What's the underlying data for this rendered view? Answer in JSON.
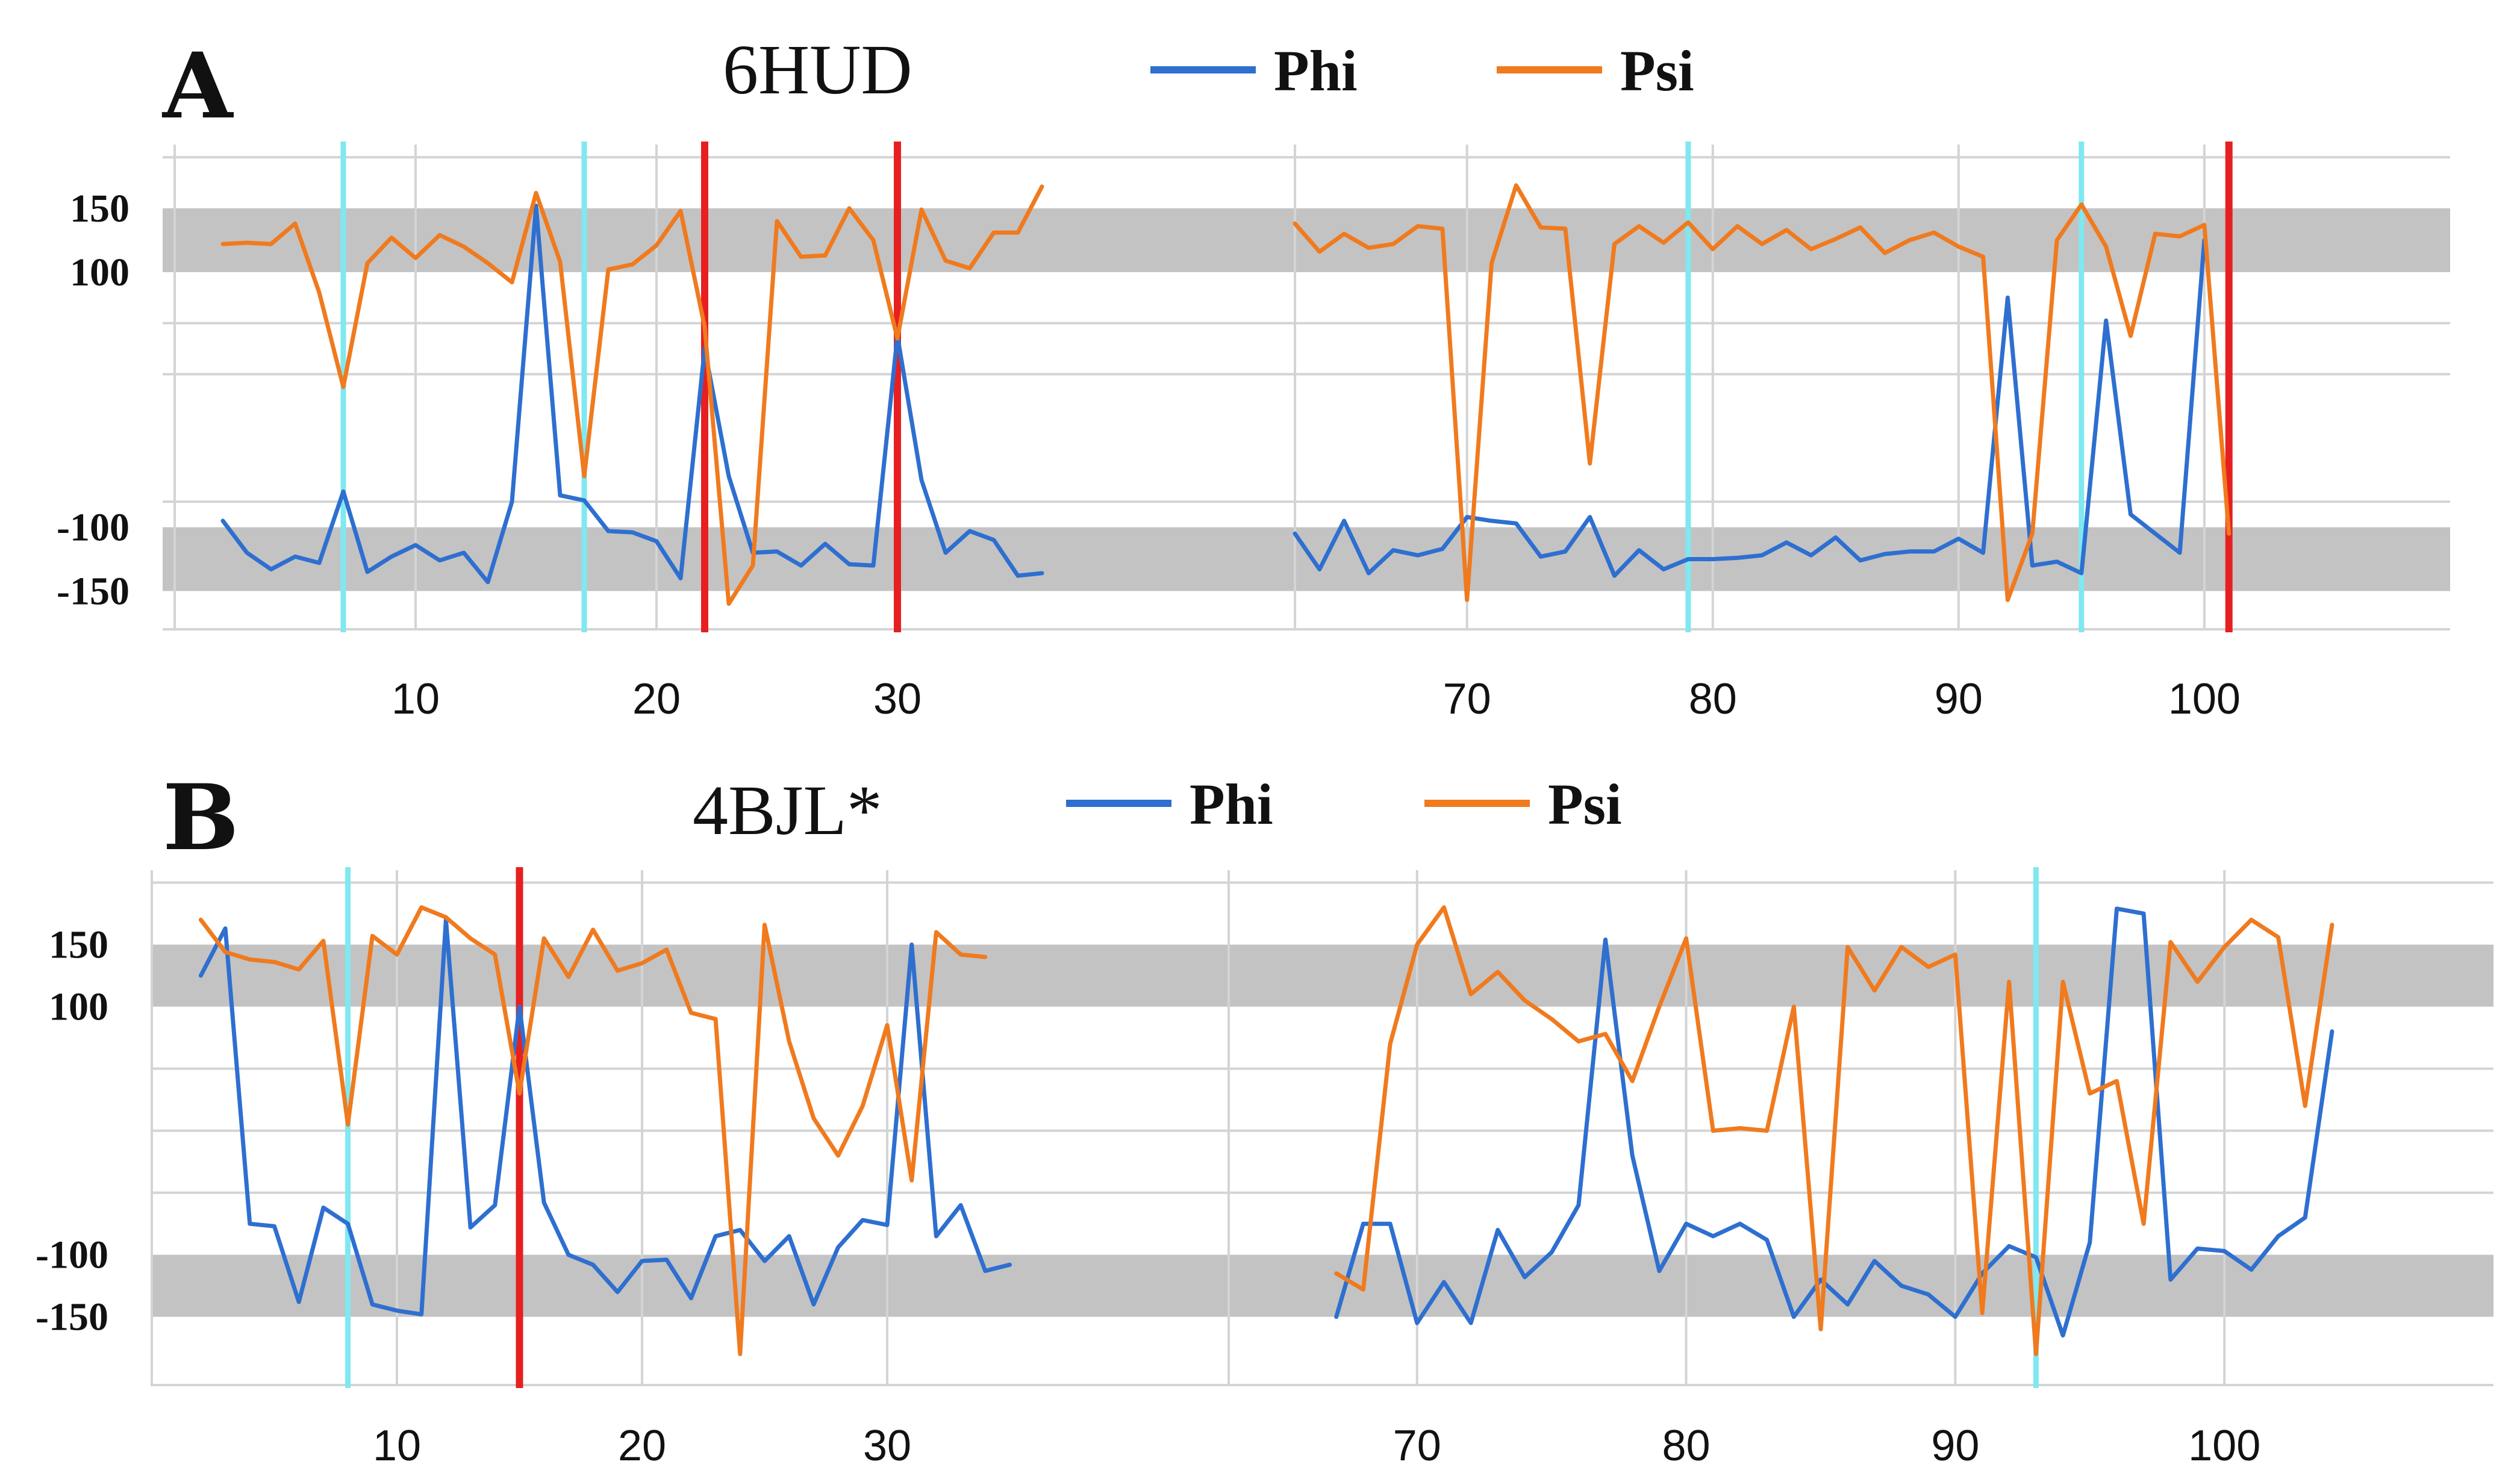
{
  "colors": {
    "phi": "#2e6fd0",
    "psi": "#f07a1e",
    "band": "#c3c3c3",
    "grid": "#d4d4d4",
    "cyan_marker": "#7fe8f0",
    "red_marker": "#e62020"
  },
  "chart_data": [
    {
      "type": "line",
      "panel": "A",
      "title": "6HUD",
      "legend": [
        "Phi",
        "Psi"
      ],
      "ylim": [
        -180,
        200
      ],
      "yticks": [
        150,
        100,
        -100,
        -150
      ],
      "ytick_labels": [
        "150",
        "100",
        "-100",
        "-150"
      ],
      "bands": [
        [
          100,
          150
        ],
        [
          -150,
          -100
        ]
      ],
      "segments": [
        {
          "xlim": [
            0,
            40
          ],
          "xticks": [
            10,
            20,
            30
          ],
          "xtick_labels": [
            "10",
            "20",
            "30"
          ],
          "x_start": 2,
          "series": [
            {
              "name": "Phi",
              "values": [
                -95,
                -120,
                -133,
                -123,
                -128,
                -72,
                -135,
                -123,
                -114,
                -126,
                -120,
                -143,
                -80,
                152,
                -75,
                -79,
                -103,
                -104,
                -111,
                -140,
                40,
                -60,
                -120,
                -119,
                -130,
                -113,
                -129,
                -130,
                50,
                -63,
                -120,
                -103,
                -110,
                -138,
                -136
              ]
            },
            {
              "name": "Psi",
              "values": [
                122,
                123,
                122,
                138,
                84,
                10,
                107,
                127,
                111,
                129,
                120,
                107,
                92,
                162,
                108,
                -60,
                102,
                106,
                121,
                148,
                57,
                -160,
                -130,
                140,
                112,
                113,
                150,
                125,
                48,
                149,
                109,
                103,
                131,
                131,
                167
              ]
            }
          ],
          "markers": [
            {
              "x": 7,
              "color": "cyan"
            },
            {
              "x": 17,
              "color": "cyan"
            },
            {
              "x": 22,
              "color": "red"
            },
            {
              "x": 30,
              "color": "red"
            }
          ]
        },
        {
          "xlim": [
            63,
            110
          ],
          "xticks": [
            70,
            80,
            90,
            100
          ],
          "xtick_labels": [
            "70",
            "80",
            "90",
            "100"
          ],
          "x_start": 63,
          "series": [
            {
              "name": "Phi",
              "values": [
                -105,
                -133,
                -95,
                -136,
                -118,
                -122,
                -117,
                -92,
                -95,
                -97,
                -123,
                -119,
                -92,
                -138,
                -118,
                -133,
                -125,
                -125,
                -124,
                -122,
                -112,
                -122,
                -108,
                -126,
                -121,
                -119,
                -119,
                -109,
                -120,
                80,
                -130,
                -127,
                -136,
                62,
                -90,
                -105,
                -120,
                125
              ]
            },
            {
              "name": "Psi",
              "values": [
                138,
                116,
                130,
                119,
                122,
                136,
                134,
                -157,
                107,
                168,
                135,
                134,
                -50,
                122,
                136,
                123,
                139,
                118,
                136,
                122,
                133,
                118,
                126,
                135,
                115,
                125,
                131,
                120,
                112,
                -157,
                -105,
                125,
                153,
                120,
                50,
                130,
                128,
                137,
                -105
              ]
            }
          ],
          "markers": [
            {
              "x": 79,
              "color": "cyan"
            },
            {
              "x": 95,
              "color": "cyan"
            },
            {
              "x": 101,
              "color": "red"
            }
          ]
        }
      ]
    },
    {
      "type": "line",
      "panel": "B",
      "title": "4BJL*",
      "legend": [
        "Phi",
        "Psi"
      ],
      "ylim": [
        -205,
        210
      ],
      "yticks": [
        150,
        100,
        -100,
        -150
      ],
      "ytick_labels": [
        "150",
        "100",
        "-100",
        "-150"
      ],
      "bands": [
        [
          100,
          150
        ],
        [
          -150,
          -100
        ]
      ],
      "segments": [
        {
          "xlim": [
            0,
            40
          ],
          "xticks": [
            10,
            20,
            30
          ],
          "xtick_labels": [
            "10",
            "20",
            "30"
          ],
          "x_start": 2,
          "series": [
            {
              "name": "Phi",
              "values": [
                125,
                163,
                -75,
                -77,
                -138,
                -62,
                -75,
                -140,
                -145,
                -148,
                170,
                -78,
                -60,
                100,
                -58,
                -100,
                -108,
                -130,
                -105,
                -104,
                -135,
                -85,
                -80,
                -105,
                -85,
                -140,
                -94,
                -72,
                -76,
                150,
                -85,
                -60,
                -113,
                -108
              ]
            },
            {
              "name": "Psi",
              "values": [
                170,
                144,
                138,
                136,
                130,
                153,
                5,
                157,
                142,
                180,
                172,
                155,
                142,
                30,
                155,
                124,
                162,
                129,
                135,
                146,
                95,
                90,
                -180,
                166,
                72,
                10,
                -20,
                20,
                85,
                -40,
                160,
                142,
                140
              ]
            }
          ],
          "markers": [
            {
              "x": 8,
              "color": "cyan"
            },
            {
              "x": 15,
              "color": "red"
            }
          ]
        },
        {
          "xlim": [
            63,
            110
          ],
          "xticks": [
            70,
            80,
            90,
            100
          ],
          "xtick_labels": [
            "70",
            "80",
            "90",
            "100"
          ],
          "x_start": 67,
          "series": [
            {
              "name": "Phi",
              "values": [
                -150,
                -75,
                -75,
                -155,
                -122,
                -155,
                -80,
                -118,
                -98,
                -60,
                154,
                -20,
                -113,
                -75,
                -85,
                -75,
                -88,
                -150,
                -120,
                -140,
                -105,
                -125,
                -132,
                -150,
                -115,
                -93,
                -102,
                -165,
                -90,
                179,
                175,
                -120,
                -95,
                -97,
                -112,
                -85,
                -70,
                80
              ]
            },
            {
              "name": "Psi",
              "values": [
                -115,
                -128,
                70,
                150,
                180,
                110,
                128,
                105,
                90,
                72,
                78,
                40,
                100,
                155,
                0,
                2,
                0,
                100,
                -160,
                148,
                113,
                148,
                132,
                142,
                -147,
                120,
                -180,
                120,
                30,
                40,
                -75,
                152,
                120,
                148,
                170,
                156,
                20,
                166
              ]
            }
          ],
          "markers": [
            {
              "x": 93,
              "color": "cyan"
            }
          ]
        }
      ]
    }
  ]
}
